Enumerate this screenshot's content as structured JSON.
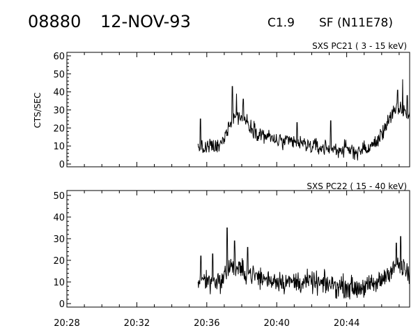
{
  "header": {
    "event_id": "08880",
    "date": "12-NOV-93",
    "flare_class": "C1.9",
    "flare_location": "SF (N11E78)"
  },
  "chart_data": [
    {
      "type": "line",
      "title": "SXS PC21  (  3 - 15 keV)",
      "ylabel": "CTS/SEC",
      "xlabel": "",
      "xlim": [
        "20:28:00",
        "20:47:36"
      ],
      "ylim": [
        0,
        60
      ],
      "yticks": [
        "0",
        "10",
        "20",
        "30",
        "40",
        "50",
        "60"
      ],
      "xticks": [],
      "series": [
        {
          "x": [
            "20:35:30",
            "20:35:45",
            "20:36:00",
            "20:36:15",
            "20:36:30",
            "20:36:45",
            "20:37:00",
            "20:37:15",
            "20:37:30",
            "20:37:45",
            "20:38:00",
            "20:38:15",
            "20:38:30",
            "20:38:45",
            "20:39:00",
            "20:39:15",
            "20:39:30",
            "20:39:45",
            "20:40:00",
            "20:40:30",
            "20:41:00",
            "20:41:30",
            "20:42:00",
            "20:42:30",
            "20:43:00",
            "20:43:30",
            "20:44:00",
            "20:44:30",
            "20:45:00",
            "20:45:20",
            "20:45:40",
            "20:46:00",
            "20:46:20",
            "20:46:40",
            "20:47:00",
            "20:47:20",
            "20:47:36"
          ],
          "y": [
            9,
            8,
            9,
            10,
            9,
            10,
            14,
            22,
            26,
            27,
            26,
            24,
            21,
            19,
            17,
            16,
            15,
            14,
            13,
            12,
            12,
            11,
            10,
            9,
            9,
            8,
            8,
            7,
            8,
            9,
            12,
            16,
            24,
            28,
            30,
            29,
            27
          ],
          "noise": 3.2,
          "spikes": [
            {
              "t": "20:35:38",
              "y": 25
            },
            {
              "t": "20:37:28",
              "y": 43
            },
            {
              "t": "20:37:42",
              "y": 39
            },
            {
              "t": "20:38:05",
              "y": 36
            },
            {
              "t": "20:41:10",
              "y": 23
            },
            {
              "t": "20:43:05",
              "y": 24
            },
            {
              "t": "20:46:55",
              "y": 41
            },
            {
              "t": "20:47:12",
              "y": 47
            },
            {
              "t": "20:47:28",
              "y": 38
            }
          ]
        }
      ]
    },
    {
      "type": "line",
      "title": "SXS PC22  ( 15 - 40 keV)",
      "ylabel": "",
      "xlabel": "",
      "xlim": [
        "20:28:00",
        "20:47:36"
      ],
      "ylim": [
        0,
        50
      ],
      "yticks": [
        "0",
        "10",
        "20",
        "30",
        "40",
        "50"
      ],
      "xticks": [
        "20:28",
        "20:32",
        "20:36",
        "20:40",
        "20:44"
      ],
      "series": [
        {
          "x": [
            "20:35:30",
            "20:35:45",
            "20:36:00",
            "20:36:15",
            "20:36:30",
            "20:36:45",
            "20:37:00",
            "20:37:15",
            "20:37:30",
            "20:37:45",
            "20:38:00",
            "20:38:30",
            "20:39:00",
            "20:39:30",
            "20:40:00",
            "20:40:30",
            "20:41:00",
            "20:41:30",
            "20:42:00",
            "20:42:30",
            "20:43:00",
            "20:43:30",
            "20:44:00",
            "20:44:30",
            "20:45:00",
            "20:45:20",
            "20:45:40",
            "20:46:00",
            "20:46:20",
            "20:46:40",
            "20:47:00",
            "20:47:20",
            "20:47:36"
          ],
          "y": [
            10,
            11,
            11,
            10,
            11,
            10,
            12,
            17,
            17,
            16,
            15,
            14,
            12,
            11,
            11,
            10,
            10,
            10,
            10,
            9,
            9,
            8,
            8,
            7,
            8,
            8,
            9,
            11,
            14,
            17,
            18,
            15,
            13
          ],
          "noise": 3.6,
          "spikes": [
            {
              "t": "20:35:40",
              "y": 22
            },
            {
              "t": "20:36:20",
              "y": 23
            },
            {
              "t": "20:37:10",
              "y": 35
            },
            {
              "t": "20:37:35",
              "y": 29
            },
            {
              "t": "20:38:20",
              "y": 26
            },
            {
              "t": "20:46:50",
              "y": 28
            },
            {
              "t": "20:47:05",
              "y": 31
            }
          ]
        }
      ]
    }
  ]
}
